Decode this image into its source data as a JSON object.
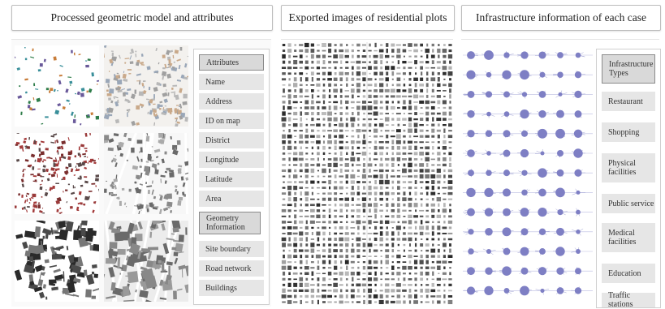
{
  "headers": {
    "left": "Processed geometric model and attributes",
    "middle": "Exported images of residential plots",
    "right": "Infrastructure information of each case"
  },
  "attributes_list": {
    "heading": "Attributes",
    "items": [
      "Name",
      "Address",
      "ID on map",
      "District",
      "Longitude",
      "Latitude",
      "Area"
    ],
    "geometry_heading": "Geometry Information",
    "geometry_items": [
      "Site boundary",
      "Road network",
      "Buildings"
    ]
  },
  "infrastructure_list": {
    "heading": "Infrastructure Types",
    "items": [
      "Restaurant",
      "Shopping",
      "Physical facilities",
      "Public service",
      "Medical facilities",
      "Education",
      "Traffic stations"
    ]
  },
  "colors": {
    "bubble": "#7e7fc4",
    "box_fill": "#e6e6e6",
    "border": "#bdbdbd"
  }
}
